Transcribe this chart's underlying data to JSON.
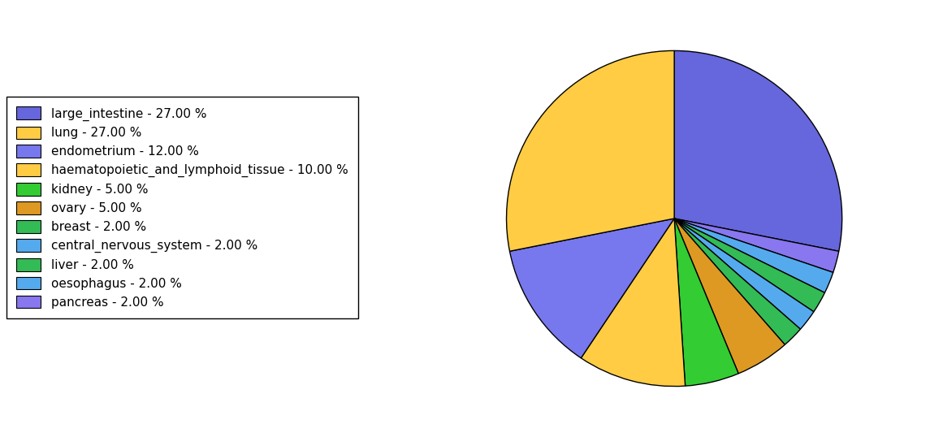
{
  "labels": [
    "large_intestine - 27.00 %",
    "lung - 27.00 %",
    "endometrium - 12.00 %",
    "haematopoietic_and_lymphoid_tissue - 10.00 %",
    "kidney - 5.00 %",
    "ovary - 5.00 %",
    "breast - 2.00 %",
    "central_nervous_system - 2.00 %",
    "liver - 2.00 %",
    "oesophagus - 2.00 %",
    "pancreas - 2.00 %"
  ],
  "values": [
    27,
    27,
    12,
    10,
    5,
    5,
    2,
    2,
    2,
    2,
    2
  ],
  "colors": [
    "#6666dd",
    "#ffcc44",
    "#7777ee",
    "#ffcc44",
    "#33cc33",
    "#dd9922",
    "#33bb55",
    "#55aaee",
    "#33bb55",
    "#55aaee",
    "#8877ee"
  ],
  "pie_order_colors": [
    "#6666dd",
    "#8877ee",
    "#55aaee",
    "#33bb55",
    "#55aaee",
    "#33bb55",
    "#dd9922",
    "#33cc33",
    "#ffcc44",
    "#7777ee",
    "#ffcc44"
  ],
  "startangle": 90,
  "figsize": [
    11.45,
    5.38
  ],
  "dpi": 100
}
